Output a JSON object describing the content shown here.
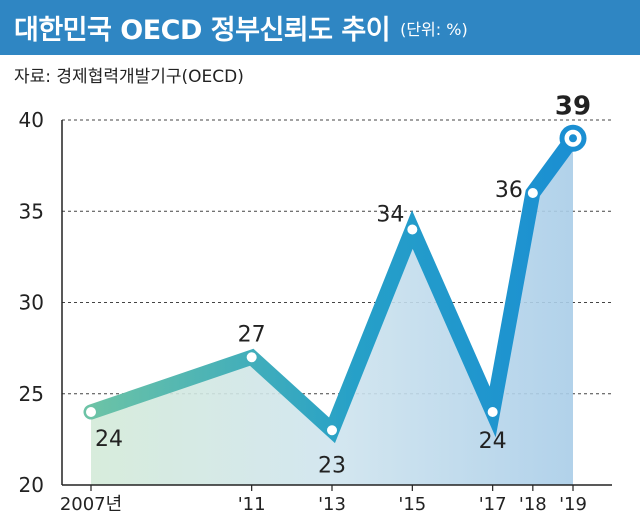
{
  "header": {
    "title": "대한민국 OECD 정부신뢰도 추이",
    "unit": "(단위: %)"
  },
  "source": "자료: 경제협력개발기구(OECD)",
  "colors": {
    "header_bg": "#2f86c3",
    "line_start": "#6cc3a6",
    "line_end": "#1b8fd2",
    "point_fill": "#ffffff",
    "grid": "#333333"
  },
  "chart_data": {
    "type": "line",
    "x": [
      "2007년",
      "'11",
      "'13",
      "'15",
      "'17",
      "'18",
      "'19"
    ],
    "x_years": [
      2007,
      2011,
      2013,
      2015,
      2017,
      2018,
      2019
    ],
    "values": [
      24,
      27,
      23,
      34,
      24,
      36,
      39
    ],
    "data_labels": [
      "24",
      "27",
      "23",
      "34",
      "24",
      "36",
      "39"
    ],
    "ylim": [
      20,
      40
    ],
    "yticks": [
      20,
      25,
      30,
      35,
      40
    ],
    "grid": true,
    "area_fill": true,
    "highlight_last": true
  }
}
